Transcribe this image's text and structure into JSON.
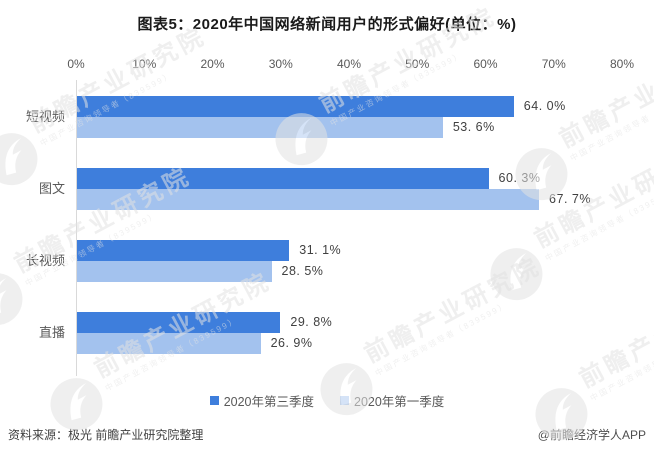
{
  "title": "图表5：2020年中国网络新闻用户的形式偏好(单位：%)",
  "chart_data": {
    "type": "bar",
    "orientation": "horizontal",
    "title": "图表5：2020年中国网络新闻用户的形式偏好(单位：%)",
    "categories": [
      "短视频",
      "图文",
      "长视频",
      "直播"
    ],
    "series": [
      {
        "name": "2020年第三季度",
        "color": "#3E7EDC",
        "values": [
          64.0,
          60.3,
          31.1,
          29.8
        ],
        "labels": [
          "64. 0%",
          "60. 3%",
          "31. 1%",
          "29. 8%"
        ]
      },
      {
        "name": "2020年第一季度",
        "color": "#A3C2EE",
        "values": [
          53.6,
          67.7,
          28.5,
          26.9
        ],
        "labels": [
          "53. 6%",
          "67. 7%",
          "28. 5%",
          "26. 9%"
        ]
      }
    ],
    "x_axis": {
      "position": "top",
      "min": 0,
      "max": 80,
      "ticks": [
        "0%",
        "10%",
        "20%",
        "30%",
        "40%",
        "50%",
        "60%",
        "70%",
        "80%"
      ]
    },
    "legend_position": "bottom",
    "grid": false
  },
  "footer": {
    "source": "资料来源：极光 前瞻产业研究院整理",
    "credit": "@前瞻经济学人APP"
  },
  "watermark": {
    "brand": "前瞻产业研究院",
    "tagline": "中国产业咨询领导者（839599）"
  },
  "colors": {
    "series_q3": "#3E7EDC",
    "series_q1": "#A3C2EE",
    "axis_line": "#D9D9D9",
    "tick_text": "#595959",
    "value_text": "#404040",
    "watermark": "#E2E2E2"
  }
}
